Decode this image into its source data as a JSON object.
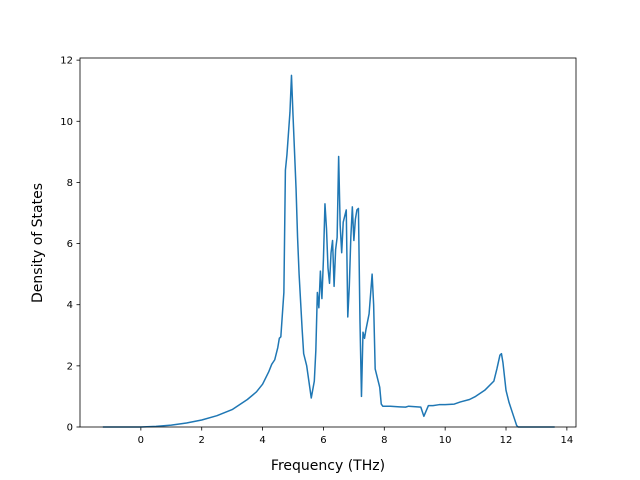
{
  "chart_data": {
    "type": "line",
    "x_label": "Frequency (THz)",
    "y_label": "Density of States",
    "xlim": [
      -2.0,
      14.3
    ],
    "ylim": [
      0,
      12.07
    ],
    "xticks": [
      0,
      2,
      4,
      6,
      8,
      10,
      12,
      14
    ],
    "yticks": [
      0,
      2,
      4,
      6,
      8,
      10,
      12
    ],
    "grid": false,
    "series": [
      {
        "color": "#1f77b4",
        "x": [
          -1.25,
          0,
          0.5,
          1,
          1.5,
          2,
          2.5,
          3,
          3.5,
          3.8,
          4.0,
          4.2,
          4.3,
          4.4,
          4.5,
          4.55,
          4.6,
          4.7,
          4.75,
          4.8,
          4.9,
          4.95,
          5.0,
          5.1,
          5.15,
          5.2,
          5.3,
          5.35,
          5.45,
          5.55,
          5.6,
          5.7,
          5.75,
          5.8,
          5.85,
          5.9,
          5.95,
          6.0,
          6.05,
          6.1,
          6.15,
          6.2,
          6.25,
          6.3,
          6.35,
          6.4,
          6.45,
          6.5,
          6.55,
          6.6,
          6.65,
          6.75,
          6.8,
          6.85,
          6.9,
          6.95,
          7.0,
          7.05,
          7.1,
          7.15,
          7.2,
          7.25,
          7.3,
          7.35,
          7.4,
          7.5,
          7.6,
          7.65,
          7.7,
          7.8,
          7.85,
          7.9,
          7.95,
          8.2,
          8.5,
          8.7,
          8.8,
          9.2,
          9.3,
          9.45,
          9.6,
          9.8,
          10.0,
          10.3,
          10.5,
          10.8,
          11.0,
          11.3,
          11.6,
          11.7,
          11.8,
          11.85,
          11.9,
          12.0,
          12.1,
          12.25,
          12.35,
          12.4,
          13.6
        ],
        "values": [
          0,
          0,
          0.02,
          0.06,
          0.13,
          0.23,
          0.37,
          0.57,
          0.9,
          1.15,
          1.4,
          1.8,
          2.05,
          2.2,
          2.6,
          2.9,
          2.95,
          4.4,
          8.4,
          8.9,
          10.3,
          11.5,
          10.2,
          7.8,
          6.2,
          5.0,
          3.2,
          2.4,
          2.0,
          1.3,
          0.95,
          1.5,
          2.5,
          4.4,
          3.9,
          5.1,
          4.2,
          5.5,
          7.3,
          6.5,
          5.2,
          4.7,
          5.7,
          6.1,
          4.6,
          5.8,
          6.2,
          8.85,
          6.6,
          5.7,
          6.7,
          7.1,
          3.6,
          4.6,
          6.2,
          7.2,
          6.1,
          6.8,
          7.1,
          7.15,
          3.5,
          1.0,
          3.1,
          2.9,
          3.2,
          3.7,
          5.0,
          4.0,
          1.9,
          1.5,
          1.3,
          0.75,
          0.68,
          0.68,
          0.66,
          0.65,
          0.68,
          0.65,
          0.35,
          0.7,
          0.7,
          0.73,
          0.73,
          0.75,
          0.82,
          0.9,
          1.0,
          1.2,
          1.5,
          1.9,
          2.35,
          2.4,
          2.1,
          1.2,
          0.8,
          0.35,
          0.05,
          0,
          0
        ]
      }
    ]
  }
}
